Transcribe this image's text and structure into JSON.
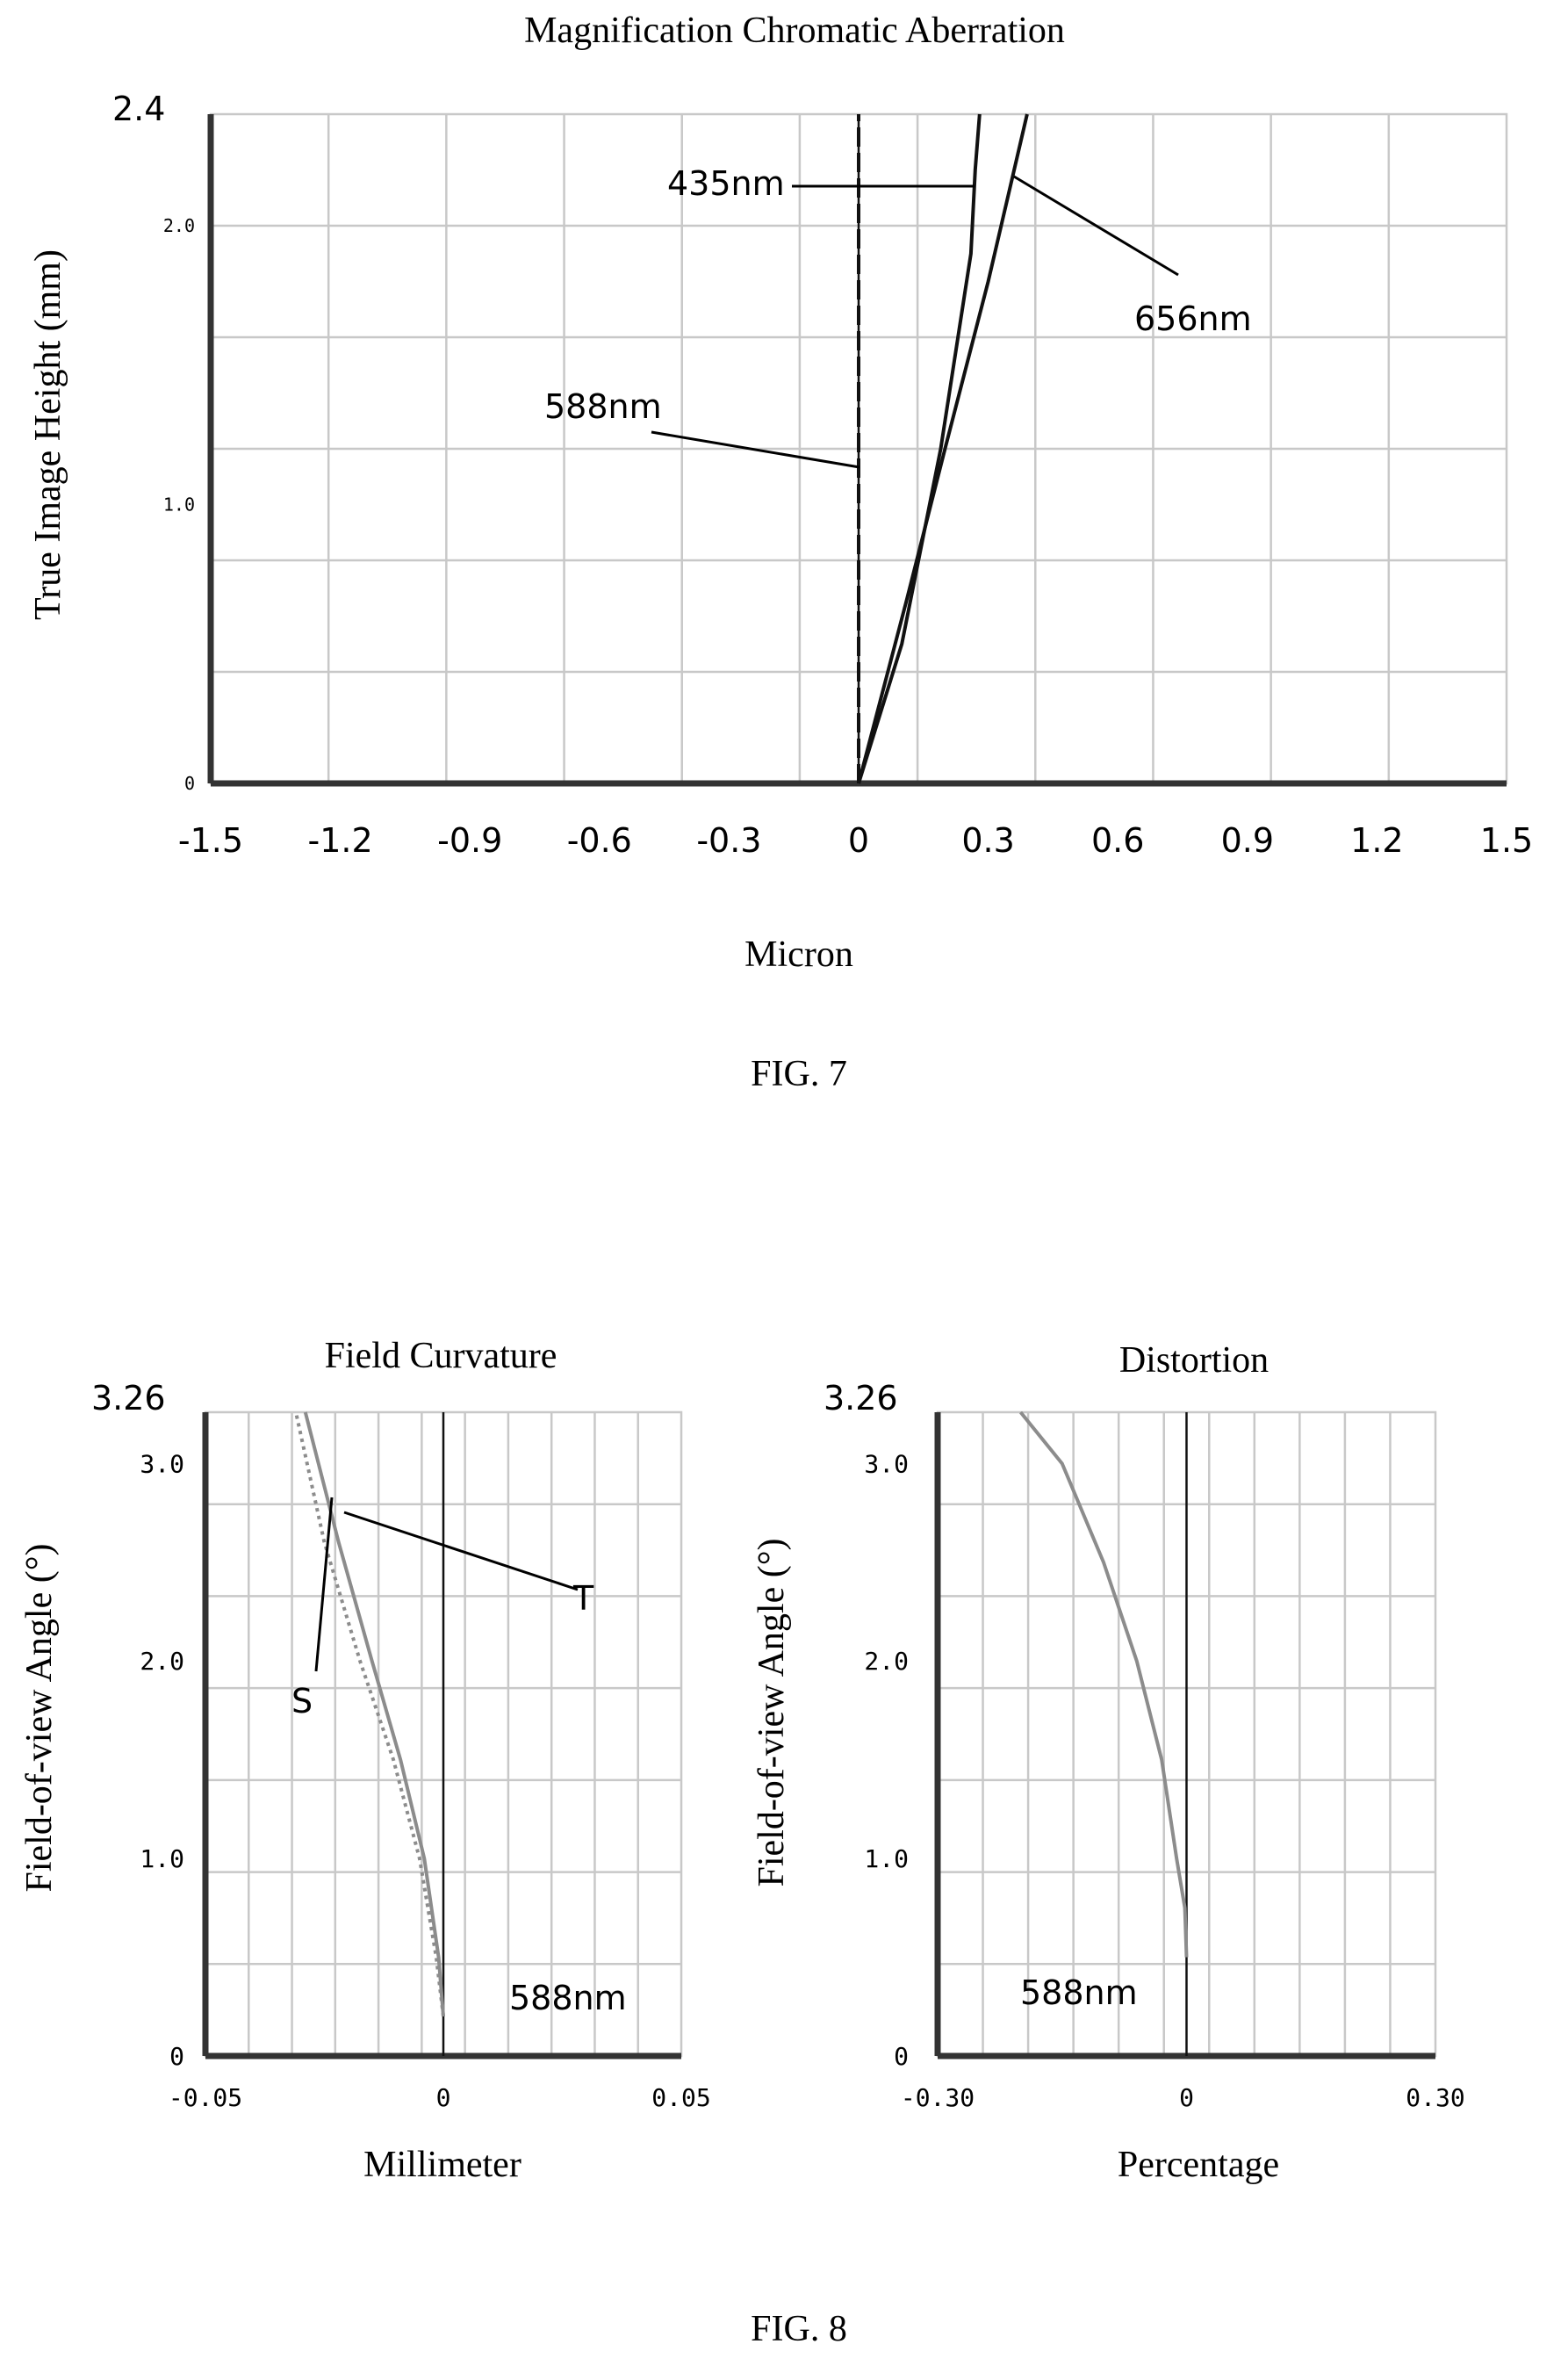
{
  "figures": [
    {
      "label": "FIG. 7"
    },
    {
      "label": "FIG. 8"
    }
  ],
  "chart_data": [
    {
      "type": "line",
      "title": "Magnification Chromatic Aberration",
      "xlabel": "Micron",
      "ylabel": "True Image Height (mm)",
      "xlim": [
        -1.5,
        1.5
      ],
      "ylim": [
        0,
        2.4
      ],
      "x_ticks": [
        "-1.5",
        "-1.2",
        "-0.9",
        "-0.6",
        "-0.3",
        "0",
        "0.3",
        "0.6",
        "0.9",
        "1.2",
        "1.5"
      ],
      "y_ticks": [
        {
          "value": 0,
          "label": "0"
        },
        {
          "value": 1.0,
          "label": "1.0"
        },
        {
          "value": 2.0,
          "label": "2.0"
        }
      ],
      "y_max_label": "2.4",
      "grid": true,
      "series": [
        {
          "name": "588nm",
          "color": "#111111",
          "dashed": true,
          "x": [
            0,
            0,
            0,
            0,
            0
          ],
          "y": [
            0,
            0.6,
            1.2,
            1.8,
            2.4
          ]
        },
        {
          "name": "435nm",
          "color": "#111111",
          "dashed": false,
          "x": [
            0,
            0.1,
            0.19,
            0.26,
            0.27,
            0.28
          ],
          "y": [
            0,
            0.5,
            1.2,
            1.9,
            2.2,
            2.4
          ]
        },
        {
          "name": "656nm",
          "color": "#111111",
          "dashed": false,
          "x": [
            0,
            0.11,
            0.2,
            0.3,
            0.39
          ],
          "y": [
            0,
            0.65,
            1.2,
            1.8,
            2.4
          ]
        }
      ],
      "annotations": [
        {
          "text": "435nm",
          "target_x": 0.27,
          "target_y": 2.15
        },
        {
          "text": "656nm",
          "target_x": 0.35,
          "target_y": 2.2
        },
        {
          "text": "588nm",
          "target_x": 0,
          "target_y": 1.12
        }
      ]
    },
    {
      "type": "line",
      "title": "Field Curvature",
      "xlabel": "Millimeter",
      "ylabel": "Field-of-view Angle (°)",
      "xlim": [
        -0.05,
        0.05
      ],
      "ylim": [
        0,
        3.26
      ],
      "x_ticks": [
        "-0.05",
        "0",
        "0.05"
      ],
      "y_ticks": [
        {
          "value": 0,
          "label": "0"
        },
        {
          "value": 1.0,
          "label": "1.0"
        },
        {
          "value": 2.0,
          "label": "2.0"
        },
        {
          "value": 3.0,
          "label": "3.0"
        }
      ],
      "y_max_label": "3.26",
      "grid": true,
      "series": [
        {
          "name": "S",
          "color": "#8c8c8c",
          "dashed": false,
          "x": [
            0,
            -0.001,
            -0.004,
            -0.009,
            -0.015,
            -0.022,
            -0.029
          ],
          "y": [
            0.2,
            0.5,
            1.0,
            1.5,
            2.0,
            2.6,
            3.26
          ]
        },
        {
          "name": "T",
          "color": "#8c8c8c",
          "dashed": true,
          "x": [
            0,
            -0.0015,
            -0.005,
            -0.0105,
            -0.0175,
            -0.025,
            -0.031
          ],
          "y": [
            0.2,
            0.5,
            1.0,
            1.5,
            2.0,
            2.6,
            3.26
          ]
        }
      ],
      "annotations": [
        {
          "text": "T",
          "target_x": -0.02,
          "target_y": 2.75
        },
        {
          "text": "S",
          "target_x": -0.023,
          "target_y": 2.8
        },
        {
          "text": "588nm",
          "target_x": null,
          "target_y": null
        }
      ]
    },
    {
      "type": "line",
      "title": "Distortion",
      "xlabel": "Percentage",
      "ylabel": "Field-of-view Angle (°)",
      "xlim": [
        -0.3,
        0.3
      ],
      "ylim": [
        0,
        3.26
      ],
      "x_ticks": [
        "-0.30",
        "0",
        "0.30"
      ],
      "y_ticks": [
        {
          "value": 0,
          "label": "0"
        },
        {
          "value": 1.0,
          "label": "1.0"
        },
        {
          "value": 2.0,
          "label": "2.0"
        },
        {
          "value": 3.0,
          "label": "3.0"
        }
      ],
      "y_max_label": "3.26",
      "grid": true,
      "series": [
        {
          "name": "588nm",
          "color": "#8c8c8c",
          "dashed": false,
          "x": [
            0,
            -0.002,
            -0.012,
            -0.03,
            -0.06,
            -0.1,
            -0.15,
            -0.2
          ],
          "y": [
            0.5,
            0.75,
            1.0,
            1.5,
            2.0,
            2.5,
            3.0,
            3.26
          ]
        }
      ],
      "annotations": [
        {
          "text": "588nm",
          "target_x": null,
          "target_y": null
        }
      ]
    }
  ]
}
